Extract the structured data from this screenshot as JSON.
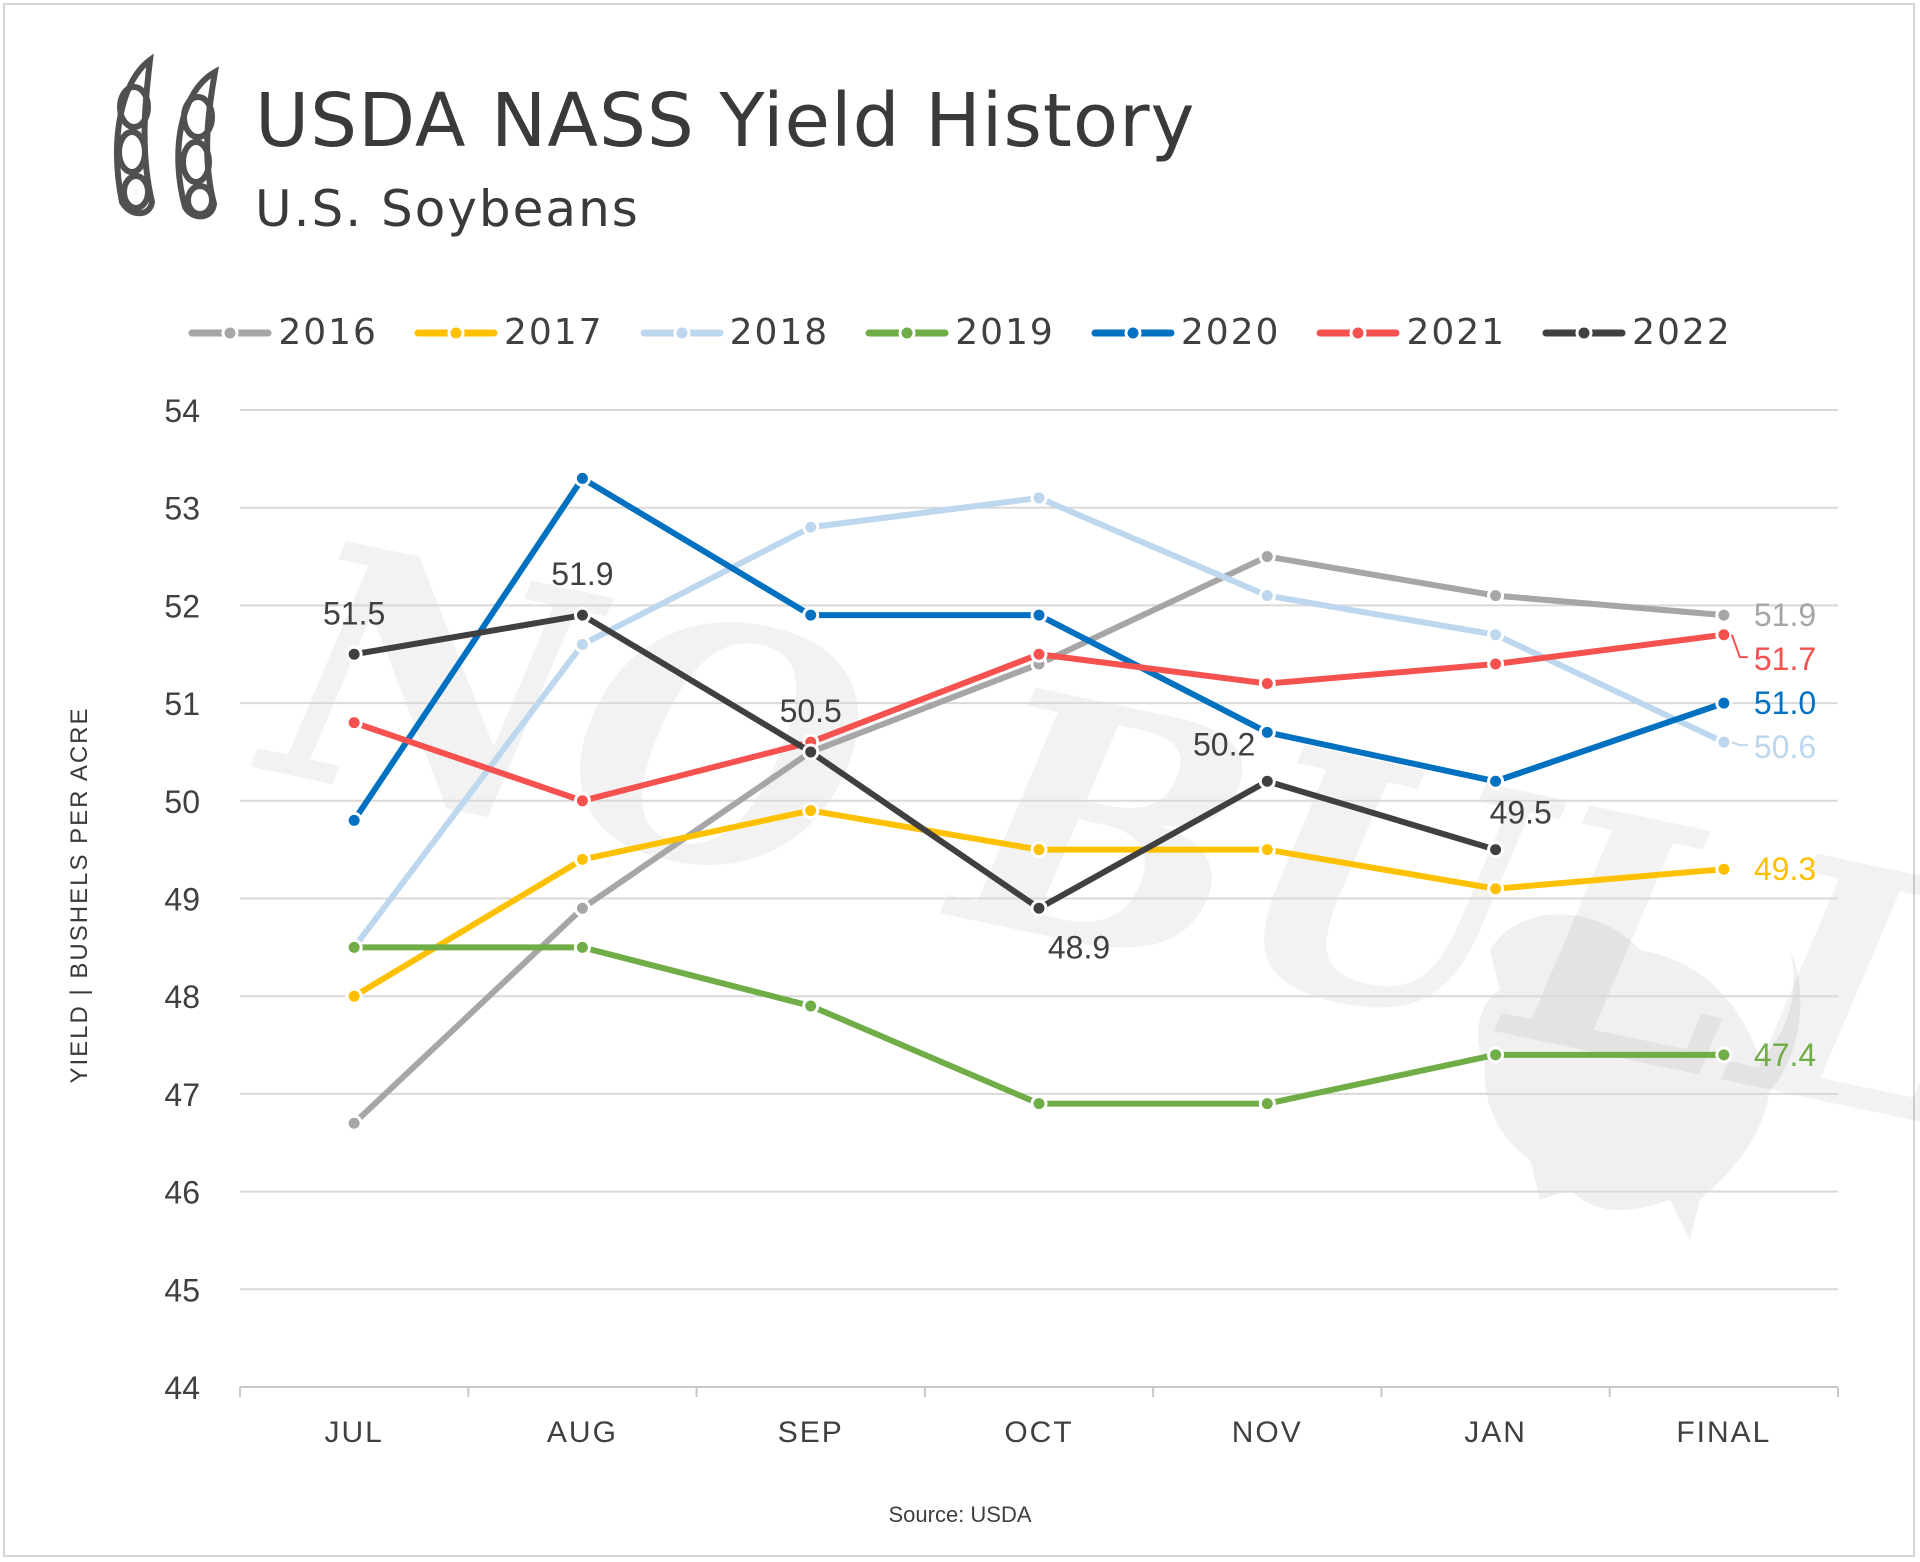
{
  "header": {
    "title": "USDA NASS Yield History",
    "subtitle": "U.S. Soybeans"
  },
  "footer": {
    "source": "Source: USDA"
  },
  "watermark_text": "NO BULL",
  "colors": {
    "2016": "#a6a6a6",
    "2017": "#ffc000",
    "2018": "#bdd7ee",
    "2019": "#70ad47",
    "2020": "#0070c0",
    "2021": "#f4514f",
    "2022": "#404040"
  },
  "chart_data": {
    "type": "line",
    "title": "USDA NASS Yield History",
    "subtitle": "U.S. Soybeans",
    "xlabel": "",
    "ylabel": "YIELD | BUSHELS PER ACRE",
    "categories": [
      "JUL",
      "AUG",
      "SEP",
      "OCT",
      "NOV",
      "JAN",
      "FINAL"
    ],
    "ylim": [
      44,
      54
    ],
    "yticks": [
      44,
      45,
      46,
      47,
      48,
      49,
      50,
      51,
      52,
      53,
      54
    ],
    "grid": true,
    "legend_position": "top-center",
    "series": [
      {
        "name": "2016",
        "values": [
          46.7,
          48.9,
          50.5,
          51.4,
          52.5,
          52.1,
          51.9
        ]
      },
      {
        "name": "2017",
        "values": [
          48.0,
          49.4,
          49.9,
          49.5,
          49.5,
          49.1,
          49.3
        ]
      },
      {
        "name": "2018",
        "values": [
          48.5,
          51.6,
          52.8,
          53.1,
          52.1,
          51.7,
          50.6
        ]
      },
      {
        "name": "2019",
        "values": [
          48.5,
          48.5,
          47.9,
          46.9,
          46.9,
          47.4,
          47.4
        ]
      },
      {
        "name": "2020",
        "values": [
          49.8,
          53.3,
          51.9,
          51.9,
          50.7,
          50.2,
          51.0
        ]
      },
      {
        "name": "2021",
        "values": [
          50.8,
          50.0,
          50.6,
          51.5,
          51.2,
          51.4,
          51.7
        ]
      },
      {
        "name": "2022",
        "values": [
          51.5,
          51.9,
          50.5,
          48.9,
          50.2,
          49.5,
          null
        ]
      }
    ],
    "point_labels": [
      {
        "series": "2022",
        "index": 0,
        "text": "51.5",
        "pos": "above"
      },
      {
        "series": "2022",
        "index": 1,
        "text": "51.9",
        "pos": "above"
      },
      {
        "series": "2022",
        "index": 2,
        "text": "50.5",
        "pos": "above"
      },
      {
        "series": "2022",
        "index": 3,
        "text": "48.9",
        "pos": "below"
      },
      {
        "series": "2022",
        "index": 4,
        "text": "50.2",
        "pos": "above-left"
      },
      {
        "series": "2022",
        "index": 5,
        "text": "49.5",
        "pos": "above-right"
      }
    ],
    "end_labels": [
      {
        "series": "2016",
        "text": "51.9"
      },
      {
        "series": "2021",
        "text": "51.7"
      },
      {
        "series": "2020",
        "text": "51.0"
      },
      {
        "series": "2018",
        "text": "50.6"
      },
      {
        "series": "2017",
        "text": "49.3"
      },
      {
        "series": "2019",
        "text": "47.4"
      }
    ]
  }
}
